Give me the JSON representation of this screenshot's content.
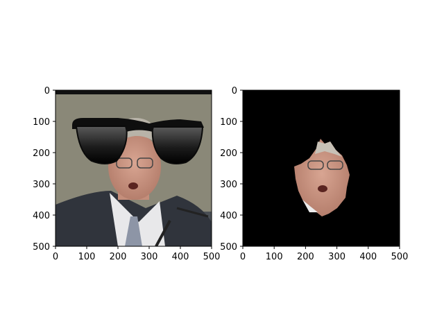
{
  "chart_data": [
    {
      "type": "image",
      "title": "",
      "xlabel": "",
      "ylabel": "",
      "xlim": [
        0,
        500
      ],
      "ylim": [
        500,
        0
      ],
      "xticks": [
        0,
        100,
        200,
        300,
        400,
        500
      ],
      "yticks": [
        0,
        100,
        200,
        300,
        400,
        500
      ],
      "content": "photo of a man in a suit with cartoon sunglasses overlay",
      "background": "#8a8878"
    },
    {
      "type": "image",
      "title": "",
      "xlabel": "",
      "ylabel": "",
      "xlim": [
        0,
        500
      ],
      "ylim": [
        500,
        0
      ],
      "xticks": [
        0,
        100,
        200,
        300,
        400,
        500
      ],
      "yticks": [
        0,
        100,
        200,
        300,
        400,
        500
      ],
      "content": "segmented face region on black background",
      "background": "#000000"
    }
  ],
  "tick_labels": [
    "0",
    "100",
    "200",
    "300",
    "400",
    "500"
  ]
}
